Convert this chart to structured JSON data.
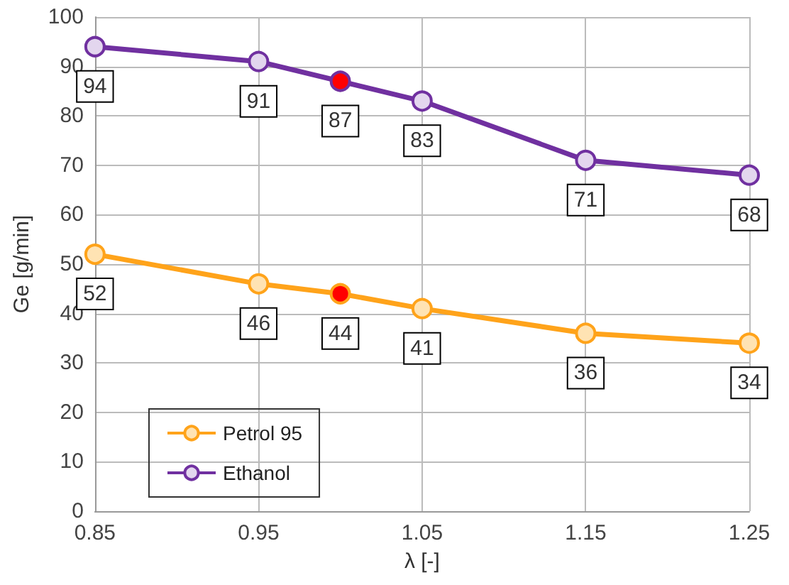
{
  "chart_data": {
    "type": "line",
    "xlabel": "λ [-]",
    "ylabel": "Ge [g/min]",
    "x": [
      0.85,
      0.95,
      1.0,
      1.05,
      1.15,
      1.25
    ],
    "series": [
      {
        "name": "Petrol 95",
        "color": "#ffa31a",
        "values": [
          52,
          46,
          44,
          41,
          36,
          34
        ],
        "colors": [
          "#ffe3b3",
          "#ffe3b3",
          "#ff0000",
          "#ffe3b3",
          "#ffe3b3",
          "#ffe3b3"
        ]
      },
      {
        "name": "Ethanol",
        "color": "#7030a0",
        "values": [
          94,
          91,
          87,
          83,
          71,
          68
        ],
        "colors": [
          "#e3d6ee",
          "#e3d6ee",
          "#ff0000",
          "#e3d6ee",
          "#e3d6ee",
          "#e3d6ee"
        ]
      }
    ],
    "xlim": [
      0.85,
      1.25
    ],
    "xticks": [
      0.85,
      0.95,
      1.05,
      1.15,
      1.25
    ],
    "ylim": [
      0,
      100
    ],
    "yticks": [
      0,
      10,
      20,
      30,
      40,
      50,
      60,
      70,
      80,
      90,
      100
    ],
    "grid": true,
    "legend": "bottom left",
    "marker": "circle",
    "line_style": "solid",
    "data_labels": true
  }
}
